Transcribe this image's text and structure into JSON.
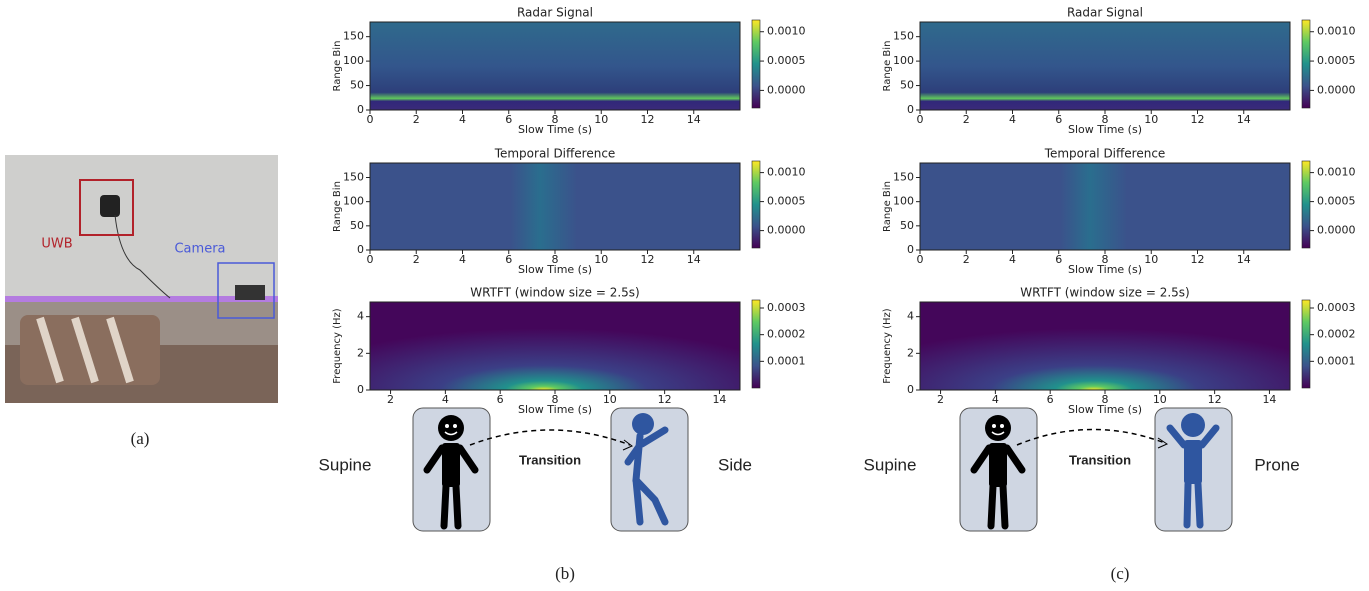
{
  "panel_a": {
    "uwb_label": "UWB",
    "camera_label": "Camera",
    "caption": "(a)"
  },
  "panels": [
    {
      "caption": "(b)",
      "from_posture": "Supine",
      "transition": "Transition",
      "to_posture": "Side",
      "plots": [
        {
          "title": "Radar Signal",
          "xlabel": "Slow Time (s)",
          "ylabel": "Range Bin",
          "xlim": [
            0,
            16
          ],
          "xticks": [
            0,
            2,
            4,
            6,
            8,
            10,
            12,
            14
          ],
          "ylim": [
            0,
            180
          ],
          "yticks": [
            0,
            50,
            100,
            150
          ],
          "clim": [
            -0.0003,
            0.0012
          ],
          "cticks": [
            {
              "value": 0,
              "label": "0.0000"
            },
            {
              "value": 0.0005,
              "label": "0.0005"
            },
            {
              "value": 0.001,
              "label": "0.0010"
            }
          ]
        },
        {
          "title": "Temporal Difference",
          "xlabel": "Slow Time (s)",
          "ylabel": "Range Bin",
          "xlim": [
            0,
            16
          ],
          "xticks": [
            0,
            2,
            4,
            6,
            8,
            10,
            12,
            14
          ],
          "ylim": [
            0,
            180
          ],
          "yticks": [
            0,
            50,
            100,
            150
          ],
          "clim": [
            -0.0003,
            0.0012
          ],
          "cticks": [
            {
              "value": 0,
              "label": "0.0000"
            },
            {
              "value": 0.0005,
              "label": "0.0005"
            },
            {
              "value": 0.001,
              "label": "0.0010"
            }
          ]
        },
        {
          "title": "WRTFT (window size = 2.5s)",
          "xlabel": "Slow Time (s)",
          "ylabel": "Frequency (Hz)",
          "xlim": [
            1.25,
            14.75
          ],
          "xticks": [
            2,
            4,
            6,
            8,
            10,
            12,
            14
          ],
          "ylim": [
            0,
            4.8
          ],
          "yticks": [
            0,
            2,
            4
          ],
          "clim": [
            0,
            0.00033
          ],
          "cticks": [
            {
              "value": 0.0001,
              "label": "0.0001"
            },
            {
              "value": 0.0002,
              "label": "0.0002"
            },
            {
              "value": 0.0003,
              "label": "0.0003"
            }
          ]
        }
      ]
    },
    {
      "caption": "(c)",
      "from_posture": "Supine",
      "transition": "Transition",
      "to_posture": "Prone",
      "plots": [
        {
          "title": "Radar Signal",
          "xlabel": "Slow Time (s)",
          "ylabel": "Range Bin",
          "xlim": [
            0,
            16
          ],
          "xticks": [
            0,
            2,
            4,
            6,
            8,
            10,
            12,
            14
          ],
          "ylim": [
            0,
            180
          ],
          "yticks": [
            0,
            50,
            100,
            150
          ],
          "clim": [
            -0.0003,
            0.0012
          ],
          "cticks": [
            {
              "value": 0,
              "label": "0.0000"
            },
            {
              "value": 0.0005,
              "label": "0.0005"
            },
            {
              "value": 0.001,
              "label": "0.0010"
            }
          ]
        },
        {
          "title": "Temporal Difference",
          "xlabel": "Slow Time (s)",
          "ylabel": "Range Bin",
          "xlim": [
            0,
            16
          ],
          "xticks": [
            0,
            2,
            4,
            6,
            8,
            10,
            12,
            14
          ],
          "ylim": [
            0,
            180
          ],
          "yticks": [
            0,
            50,
            100,
            150
          ],
          "clim": [
            -0.0003,
            0.0012
          ],
          "cticks": [
            {
              "value": 0,
              "label": "0.0000"
            },
            {
              "value": 0.0005,
              "label": "0.0005"
            },
            {
              "value": 0.001,
              "label": "0.0010"
            }
          ]
        },
        {
          "title": "WRTFT (window size = 2.5s)",
          "xlabel": "Slow Time (s)",
          "ylabel": "Frequency (Hz)",
          "xlim": [
            1.25,
            14.75
          ],
          "xticks": [
            2,
            4,
            6,
            8,
            10,
            12,
            14
          ],
          "ylim": [
            0,
            4.8
          ],
          "yticks": [
            0,
            2,
            4
          ],
          "clim": [
            0,
            0.00033
          ],
          "cticks": [
            {
              "value": 0.0001,
              "label": "0.0001"
            },
            {
              "value": 0.0002,
              "label": "0.0002"
            },
            {
              "value": 0.0003,
              "label": "0.0003"
            }
          ]
        }
      ]
    }
  ]
}
